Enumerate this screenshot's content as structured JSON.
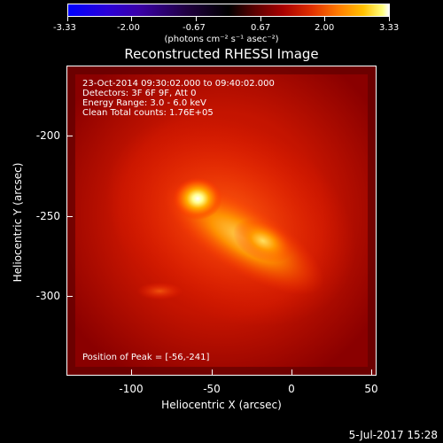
{
  "colorbar": {
    "ticks": [
      "-3.33",
      "-2.00",
      "-0.67",
      "0.67",
      "2.00",
      "3.33"
    ],
    "unit": "(photons cm⁻² s⁻¹ asec⁻²)"
  },
  "title": "Reconstructed RHESSI Image",
  "info": {
    "time": "23-Oct-2014 09:30:02.000 to 09:40:02.000",
    "detectors": "Detectors: 3F 6F 9F, Att 0",
    "energy": "Energy Range: 3.0 - 6.0 keV",
    "method": "Clean     Total counts: 1.76E+05",
    "peak": "Position of Peak = [-56,-241]"
  },
  "axes": {
    "y_ticks": [
      "-200",
      "-250",
      "-300"
    ],
    "x_ticks": [
      "-100",
      "-50",
      "0",
      "50"
    ],
    "xlabel": "Heliocentric X (arcsec)",
    "ylabel": "Heliocentric Y (arcsec)"
  },
  "footer_date": "5-Jul-2017 15:28"
}
